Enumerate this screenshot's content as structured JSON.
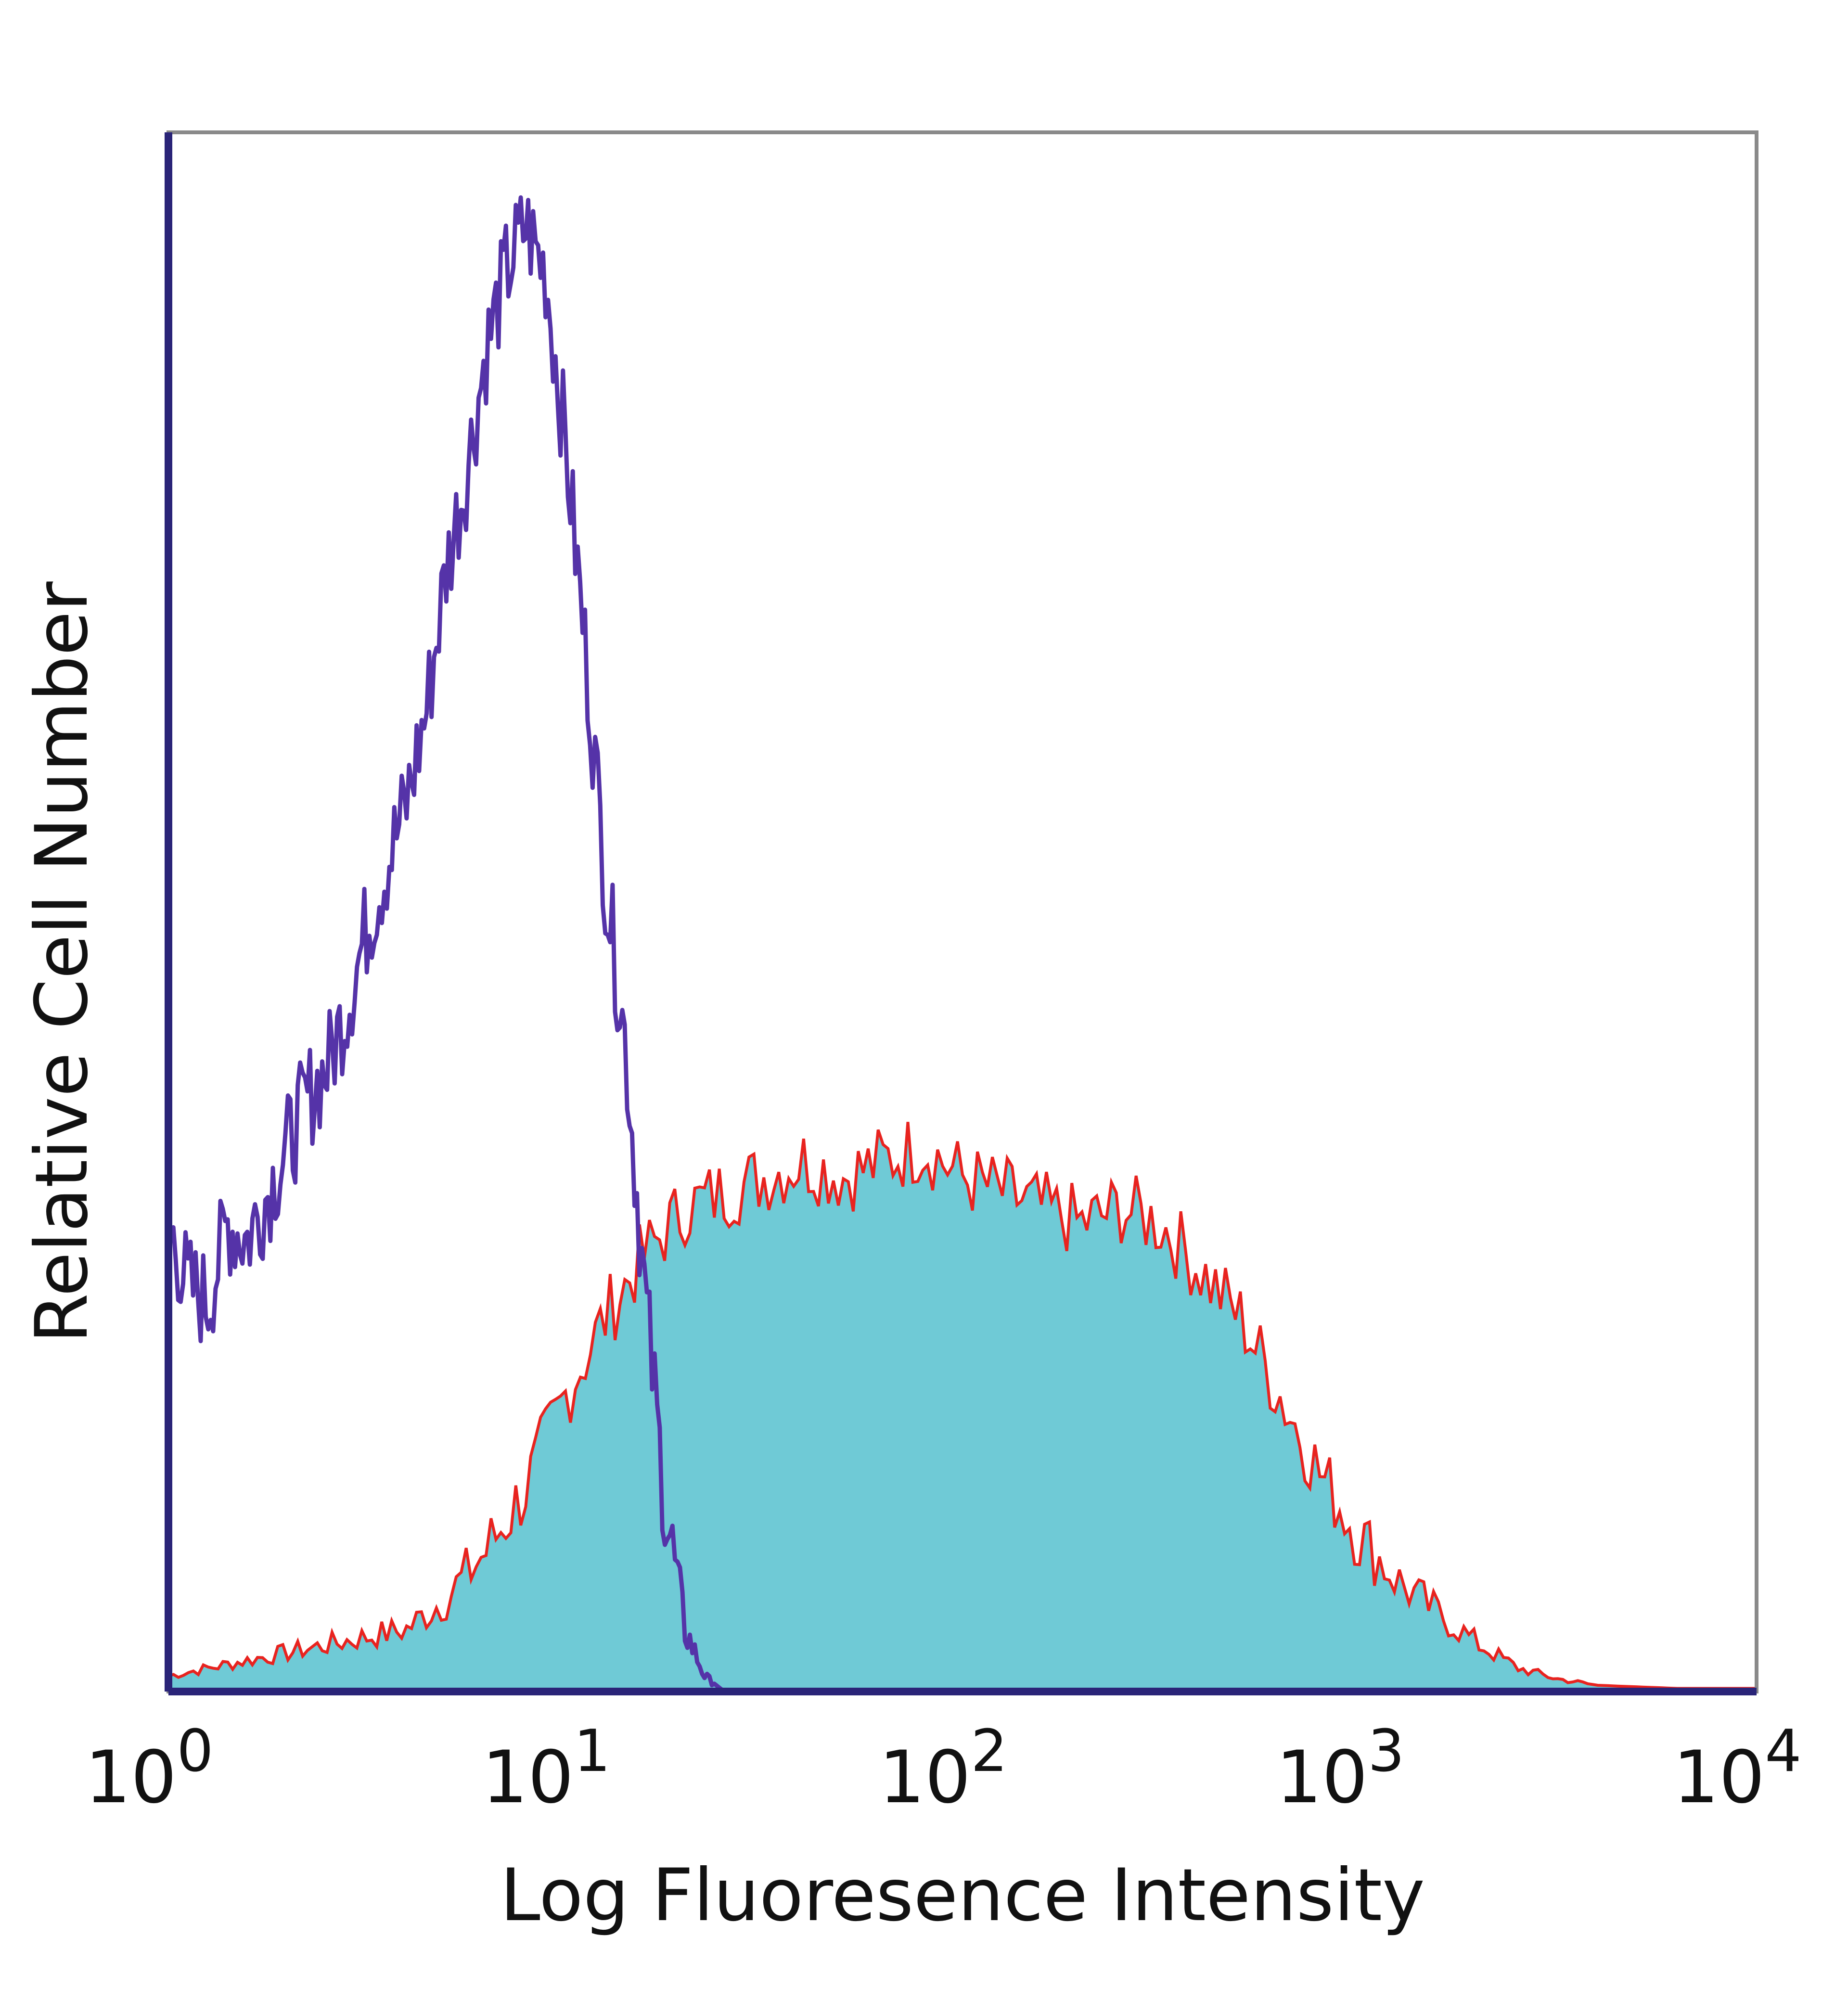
{
  "chart_data": {
    "type": "area",
    "xlabel": "Log Fluoresence Intensity",
    "ylabel": "Relative Cell Number",
    "x_scale": "log",
    "xlim": [
      1,
      10000
    ],
    "ylim": [
      0,
      100
    ],
    "grid": false,
    "legend": "none",
    "x_ticks": [
      {
        "base": "10",
        "exp": "0",
        "value": 1
      },
      {
        "base": "10",
        "exp": "1",
        "value": 10
      },
      {
        "base": "10",
        "exp": "2",
        "value": 100
      },
      {
        "base": "10",
        "exp": "3",
        "value": 1000
      },
      {
        "base": "10",
        "exp": "4",
        "value": 10000
      }
    ],
    "colors": {
      "isotype_line": "#5533a8",
      "stained_fill": "#6fcad6",
      "stained_line": "#e8231f",
      "axis": "#2a2478"
    },
    "series": [
      {
        "style": "line",
        "x": [
          1.0,
          1.12,
          1.26,
          1.41,
          1.58,
          1.78,
          2.0,
          2.24,
          2.51,
          2.82,
          3.16,
          3.55,
          3.98,
          4.47,
          5.01,
          5.62,
          6.31,
          7.08,
          7.94,
          8.91,
          10.0,
          11.2,
          12.6,
          14.1,
          15.8,
          17.8,
          20.0,
          22.4,
          25.1,
          28.2
        ],
        "y": [
          30,
          26,
          25,
          30,
          29,
          32,
          35,
          38,
          40,
          44,
          49,
          53,
          57,
          63,
          72,
          78,
          86,
          91,
          94,
          91,
          80,
          67,
          52,
          42,
          26,
          12,
          4,
          1,
          0,
          0
        ]
      },
      {
        "style": "filled",
        "x": [
          1.0,
          1.26,
          1.58,
          2.0,
          2.51,
          3.16,
          3.98,
          5.01,
          6.31,
          7.94,
          10.0,
          12.6,
          15.8,
          20.0,
          25.1,
          31.6,
          39.8,
          50.1,
          63.1,
          79.4,
          100,
          126,
          158,
          200,
          251,
          316,
          398,
          501,
          631,
          794,
          1000,
          1260,
          1580,
          2000,
          2510,
          3160,
          3980,
          5010,
          6310,
          7940,
          10000
        ],
        "y": [
          1,
          1.5,
          2,
          2.5,
          3,
          3.5,
          4,
          6,
          9,
          13,
          19,
          24,
          28,
          31,
          32,
          33,
          34,
          33,
          34,
          35,
          33,
          32,
          31,
          30,
          31,
          30,
          27,
          24,
          19,
          14,
          10,
          7,
          5,
          3,
          1.5,
          0.8,
          0.4,
          0.3,
          0.2,
          0.2,
          0.2
        ]
      }
    ]
  }
}
